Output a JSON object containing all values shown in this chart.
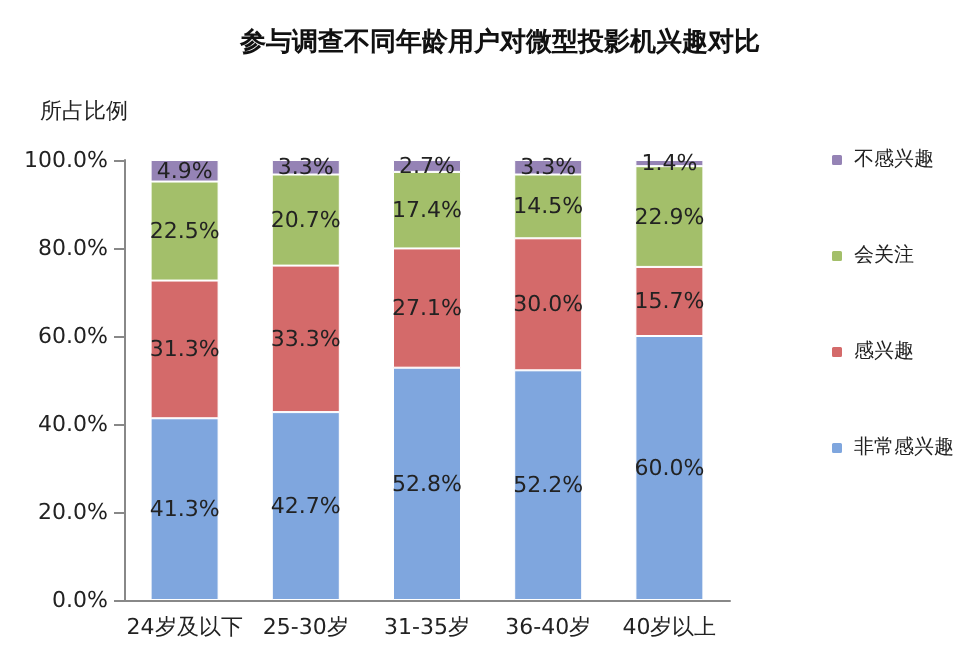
{
  "chart_data": {
    "type": "bar",
    "stacked": true,
    "title": "参与调查不同年龄用户对微型投影机兴趣对比",
    "ylabel": "所占比例",
    "categories": [
      "24岁及以下",
      "25-30岁",
      "31-35岁",
      "36-40岁",
      "40岁以上"
    ],
    "series": [
      {
        "name": "非常感兴趣",
        "color": "#7fa6de",
        "values": [
          41.3,
          42.7,
          52.8,
          52.2,
          60.0
        ],
        "value_labels": [
          "41.3%",
          "42.7%",
          "52.8%",
          "52.2%",
          "60.0%"
        ]
      },
      {
        "name": "感兴趣",
        "color": "#d46a6a",
        "values": [
          31.3,
          33.3,
          27.1,
          30.0,
          15.7
        ],
        "value_labels": [
          "31.3%",
          "33.3%",
          "27.1%",
          "30.0%",
          "15.7%"
        ]
      },
      {
        "name": "会关注",
        "color": "#a3bf6a",
        "values": [
          22.5,
          20.7,
          17.4,
          14.5,
          22.9
        ],
        "value_labels": [
          "22.5%",
          "20.7%",
          "17.4%",
          "14.5%",
          "22.9%"
        ]
      },
      {
        "name": "不感兴趣",
        "color": "#9583b5",
        "values": [
          4.9,
          3.3,
          2.7,
          3.3,
          1.4
        ],
        "value_labels": [
          "4.9%",
          "3.3%",
          "2.7%",
          "3.3%",
          "1.4%"
        ]
      }
    ],
    "ylim": [
      0,
      100
    ],
    "yticks": [
      {
        "value": 0,
        "label": "0.0%"
      },
      {
        "value": 20,
        "label": "20.0%"
      },
      {
        "value": 40,
        "label": "40.0%"
      },
      {
        "value": 60,
        "label": "60.0%"
      },
      {
        "value": 80,
        "label": "80.0%"
      },
      {
        "value": 100,
        "label": "100.0%"
      }
    ],
    "grid": false,
    "legend": "right"
  }
}
